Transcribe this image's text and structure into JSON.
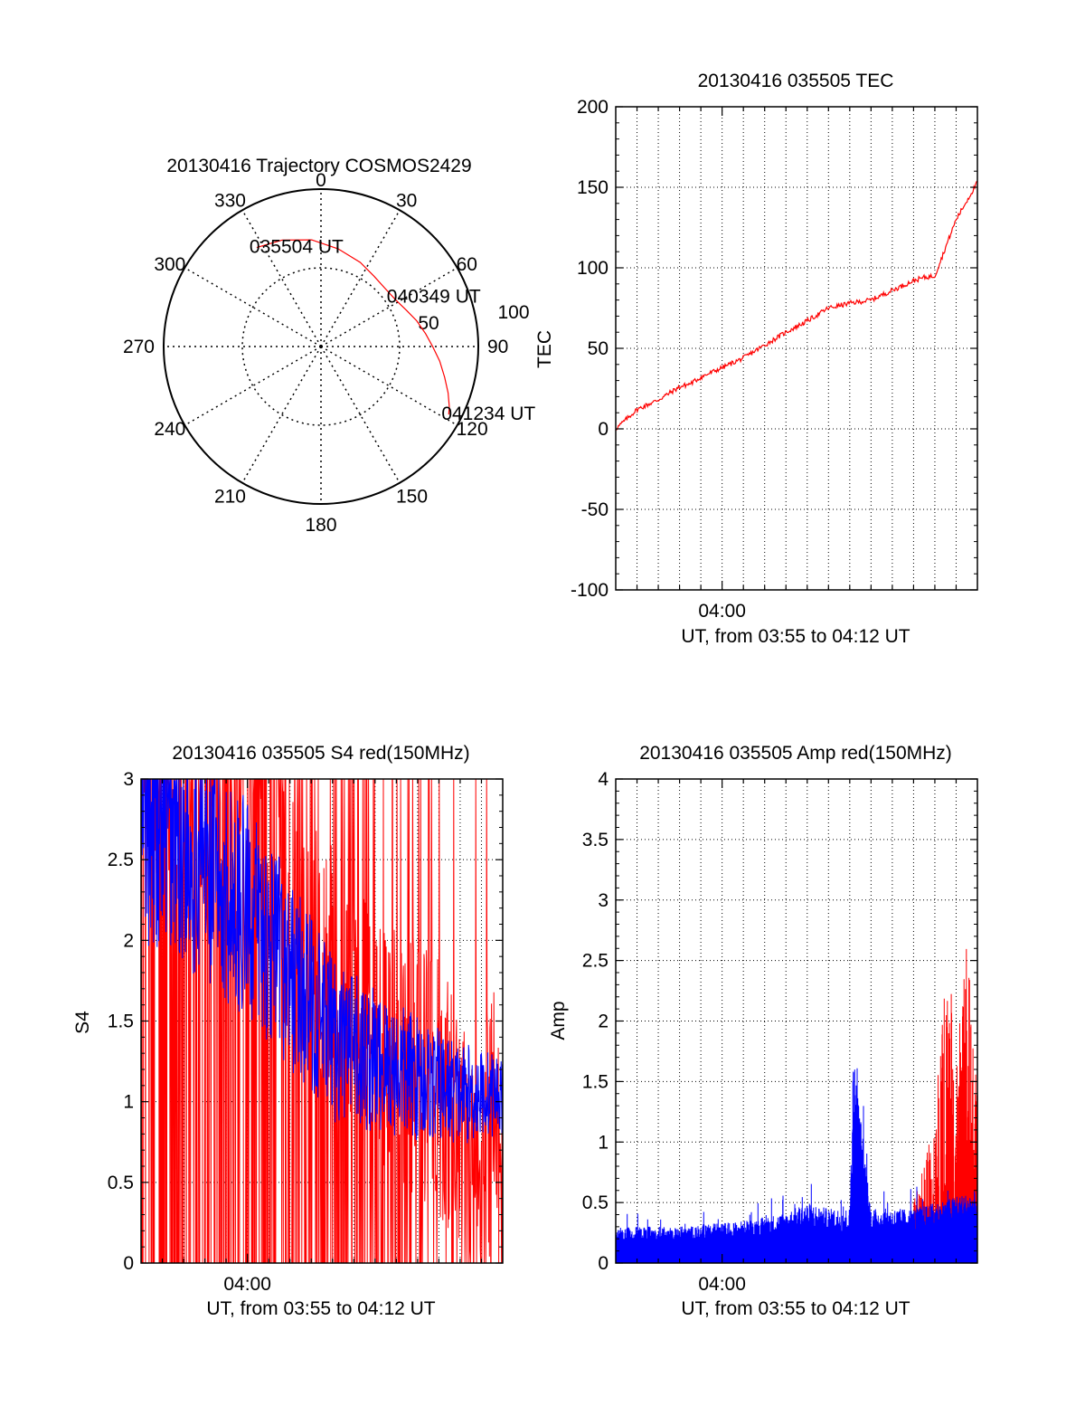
{
  "figure": {
    "background": "#ffffff",
    "colors": {
      "red": "#ff0000",
      "blue": "#0000ff",
      "axis": "#000000"
    }
  },
  "chart_data": [
    {
      "id": "polar",
      "type": "scatter",
      "subtype": "polar",
      "title": "20130416 Trajectory COSMOS2429",
      "azimuth_ticks": [
        "0",
        "30",
        "60",
        "90",
        "120",
        "150",
        "180",
        "210",
        "240",
        "270",
        "300",
        "330"
      ],
      "radial_ticks": [
        "50",
        "100"
      ],
      "radius_max": 100,
      "elevation_mapping": "r = 90 - elevation",
      "trajectory": {
        "color": "#ff0000",
        "azimuth_deg": [
          327,
          340,
          355,
          10,
          25,
          37,
          48,
          58,
          67,
          75,
          83,
          90,
          97,
          104,
          110,
          115,
          118
        ],
        "r": [
          75,
          72,
          68,
          63,
          59,
          56,
          55,
          56,
          59,
          63,
          67,
          71,
          76,
          81,
          86,
          90,
          92
        ]
      },
      "annotations": [
        {
          "text": "035504 UT",
          "az": 327,
          "r": 75
        },
        {
          "text": "040349 UT",
          "az": 56,
          "r": 56
        },
        {
          "text": "041234 UT",
          "az": 118,
          "r": 92
        }
      ],
      "grid": true
    },
    {
      "id": "tec",
      "type": "line",
      "title": "20130416 035505 TEC",
      "xlabel": "UT, from 03:55 to 04:12 UT",
      "ylabel": "TEC",
      "xlim": [
        "03:55",
        "04:12"
      ],
      "ylim": [
        -100,
        200
      ],
      "yticks": [
        -100,
        -50,
        0,
        50,
        100,
        150,
        200
      ],
      "xtick_labels": [
        "04:00"
      ],
      "grid": true,
      "series": [
        {
          "color": "#ff0000",
          "x": [
            "03:55",
            "03:56",
            "03:57",
            "03:58",
            "03:58:30",
            "03:59",
            "04:00",
            "04:01",
            "04:02",
            "04:03",
            "04:04",
            "04:05",
            "04:06",
            "04:07",
            "04:08",
            "04:09",
            "04:09:30",
            "04:10",
            "04:11",
            "04:12"
          ],
          "y": [
            0,
            12,
            18,
            26,
            28,
            32,
            38,
            44,
            52,
            60,
            67,
            75,
            78,
            80,
            86,
            92,
            94,
            95,
            130,
            153
          ]
        }
      ]
    },
    {
      "id": "s4",
      "type": "line",
      "title": "20130416 035505 S4 red(150MHz)",
      "xlabel": "UT, from 03:55 to 04:12 UT",
      "ylabel": "S4",
      "xlim": [
        "03:55",
        "04:12"
      ],
      "ylim": [
        0,
        3
      ],
      "yticks": [
        0,
        0.5,
        1,
        1.5,
        2,
        2.5,
        3
      ],
      "xtick_labels": [
        "04:00"
      ],
      "grid": true,
      "series": [
        {
          "color": "#ff0000",
          "x": [
            "03:55",
            "03:56",
            "03:57",
            "03:58",
            "03:59",
            "04:00",
            "04:01",
            "04:02",
            "04:03",
            "04:04",
            "04:05",
            "04:06",
            "04:07",
            "04:08",
            "04:09",
            "04:10",
            "04:11",
            "04:12"
          ],
          "y": [
            3.0,
            3.0,
            3.0,
            3.0,
            3.0,
            3.0,
            2.5,
            2.2,
            2.0,
            1.8,
            1.6,
            1.4,
            1.3,
            1.2,
            1.1,
            0.8,
            0.6,
            1.2
          ]
        },
        {
          "color": "#0000ff",
          "x": [
            "03:55",
            "03:56",
            "03:57",
            "03:58",
            "03:59",
            "04:00",
            "04:01",
            "04:02",
            "04:03",
            "04:04",
            "04:05",
            "04:06",
            "04:07",
            "04:08",
            "04:09",
            "04:10",
            "04:11",
            "04:12"
          ],
          "y": [
            2.8,
            2.7,
            2.6,
            2.5,
            2.3,
            2.2,
            2.0,
            1.8,
            1.6,
            1.4,
            1.3,
            1.25,
            1.2,
            1.15,
            1.1,
            1.05,
            1.05,
            1.05
          ]
        }
      ]
    },
    {
      "id": "amp",
      "type": "line",
      "title": "20130416 035505 Amp red(150MHz)",
      "xlabel": "UT, from 03:55 to 04:12 UT",
      "ylabel": "Amp",
      "xlim": [
        "03:55",
        "04:12"
      ],
      "ylim": [
        0,
        4
      ],
      "yticks": [
        0,
        0.5,
        1,
        1.5,
        2,
        2.5,
        3,
        3.5,
        4
      ],
      "ytick_labels": [
        "0",
        "0.5",
        "1",
        "1.5",
        "2",
        "2.5",
        "3",
        "3.5",
        "4"
      ],
      "xtick_labels": [
        "04:00"
      ],
      "grid": true,
      "series": [
        {
          "color": "#0000ff",
          "x": [
            "03:55",
            "03:56",
            "03:57",
            "03:58",
            "03:59",
            "04:00",
            "04:01",
            "04:02",
            "04:03",
            "04:04",
            "04:05",
            "04:06",
            "04:06:10",
            "04:07",
            "04:08",
            "04:09",
            "04:10",
            "04:11",
            "04:12"
          ],
          "y": [
            0.3,
            0.3,
            0.3,
            0.3,
            0.32,
            0.33,
            0.35,
            0.38,
            0.42,
            0.5,
            0.45,
            0.45,
            1.75,
            0.45,
            0.45,
            0.45,
            0.5,
            0.55,
            0.6
          ]
        },
        {
          "color": "#ff0000",
          "x": [
            "04:09",
            "04:10",
            "04:10:30",
            "04:11",
            "04:11:30",
            "04:12"
          ],
          "y": [
            0.5,
            1.2,
            2.6,
            2.0,
            2.7,
            1.4
          ]
        }
      ]
    }
  ]
}
